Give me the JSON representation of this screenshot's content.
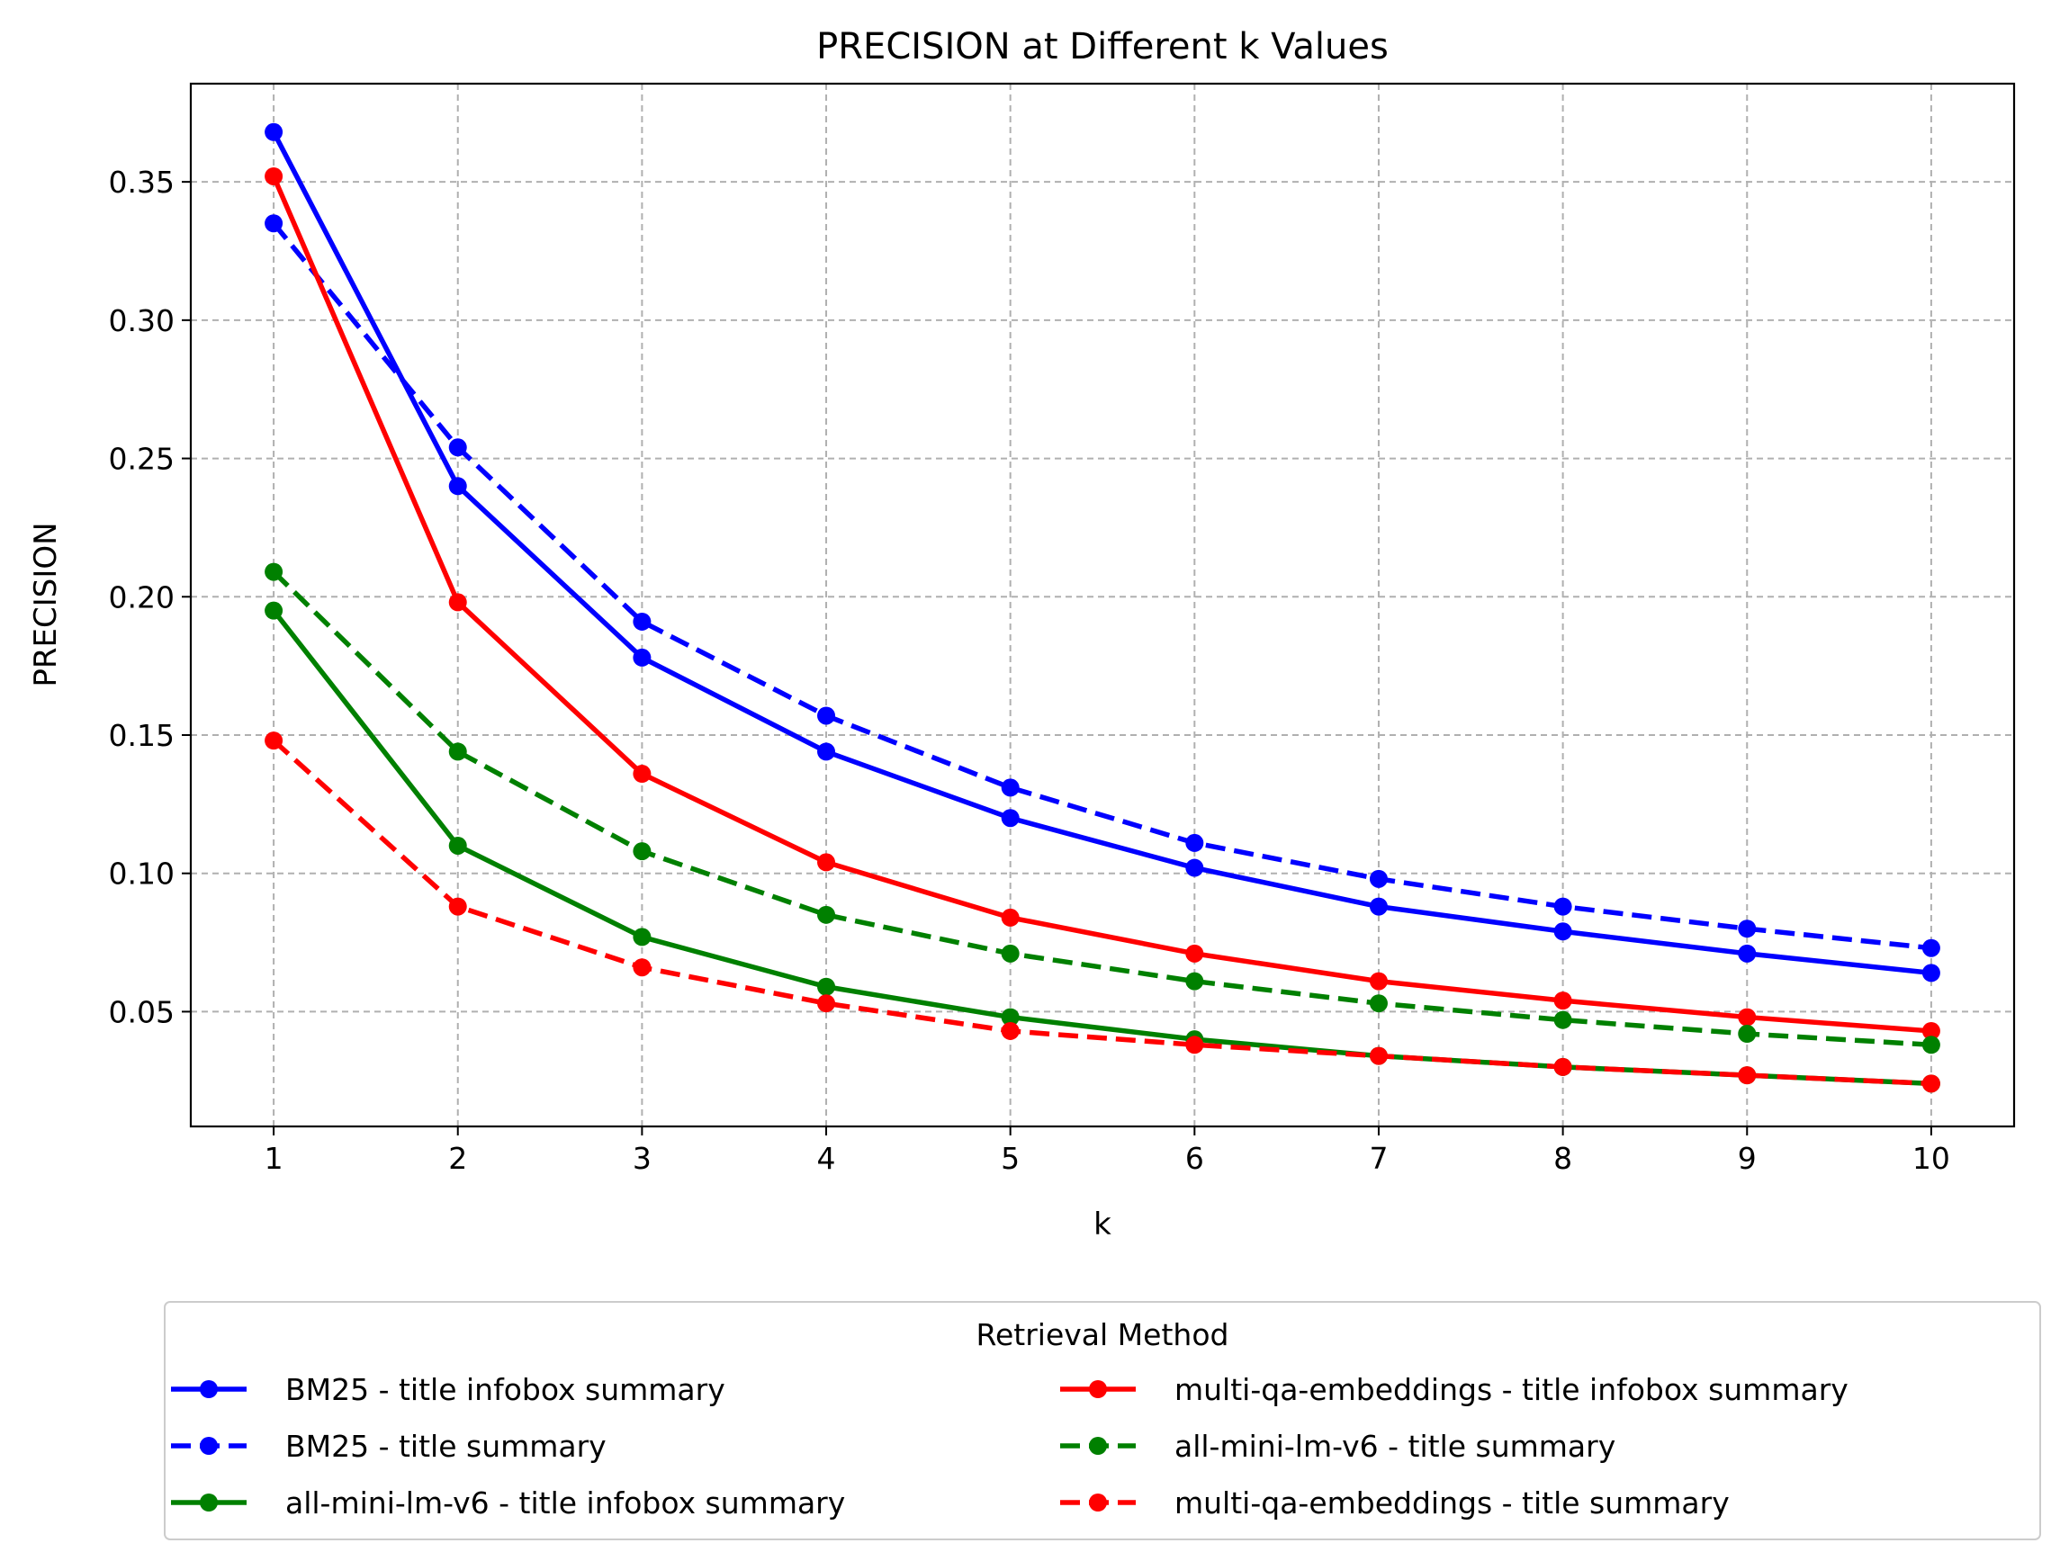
{
  "chart_data": {
    "type": "line",
    "title": "PRECISION at Different k Values",
    "xlabel": "k",
    "ylabel": "PRECISION",
    "x": [
      1,
      2,
      3,
      4,
      5,
      6,
      7,
      8,
      9,
      10
    ],
    "xlim": [
      0.55,
      10.45
    ],
    "ylim": [
      0.0085,
      0.3855
    ],
    "yticks": [
      0.05,
      0.1,
      0.15,
      0.2,
      0.25,
      0.3,
      0.35
    ],
    "ytick_labels": [
      "0.05",
      "0.10",
      "0.15",
      "0.20",
      "0.25",
      "0.30",
      "0.35"
    ],
    "xtick_labels": [
      "1",
      "2",
      "3",
      "4",
      "5",
      "6",
      "7",
      "8",
      "9",
      "10"
    ],
    "grid": true,
    "legend": {
      "title": "Retrieval Method",
      "placement": "below",
      "columns": 2
    },
    "series": [
      {
        "name": "BM25 - title infobox summary",
        "color": "#0000ff",
        "dashed": false,
        "values": [
          0.368,
          0.24,
          0.178,
          0.144,
          0.12,
          0.102,
          0.088,
          0.079,
          0.071,
          0.064
        ]
      },
      {
        "name": "BM25 - title summary",
        "color": "#0000ff",
        "dashed": true,
        "values": [
          0.335,
          0.254,
          0.191,
          0.157,
          0.131,
          0.111,
          0.098,
          0.088,
          0.08,
          0.073
        ]
      },
      {
        "name": "all-mini-lm-v6 - title infobox summary",
        "color": "#008000",
        "dashed": false,
        "values": [
          0.195,
          0.11,
          0.077,
          0.059,
          0.048,
          0.04,
          0.034,
          0.03,
          0.027,
          0.024
        ]
      },
      {
        "name": "multi-qa-embeddings - title infobox summary",
        "color": "#ff0000",
        "dashed": false,
        "values": [
          0.352,
          0.198,
          0.136,
          0.104,
          0.084,
          0.071,
          0.061,
          0.054,
          0.048,
          0.043
        ]
      },
      {
        "name": "all-mini-lm-v6 - title summary",
        "color": "#008000",
        "dashed": true,
        "values": [
          0.209,
          0.144,
          0.108,
          0.085,
          0.071,
          0.061,
          0.053,
          0.047,
          0.042,
          0.038
        ]
      },
      {
        "name": "multi-qa-embeddings - title summary",
        "color": "#ff0000",
        "dashed": true,
        "values": [
          0.148,
          0.088,
          0.066,
          0.053,
          0.043,
          0.038,
          0.034,
          0.03,
          0.027,
          0.024
        ]
      }
    ]
  }
}
